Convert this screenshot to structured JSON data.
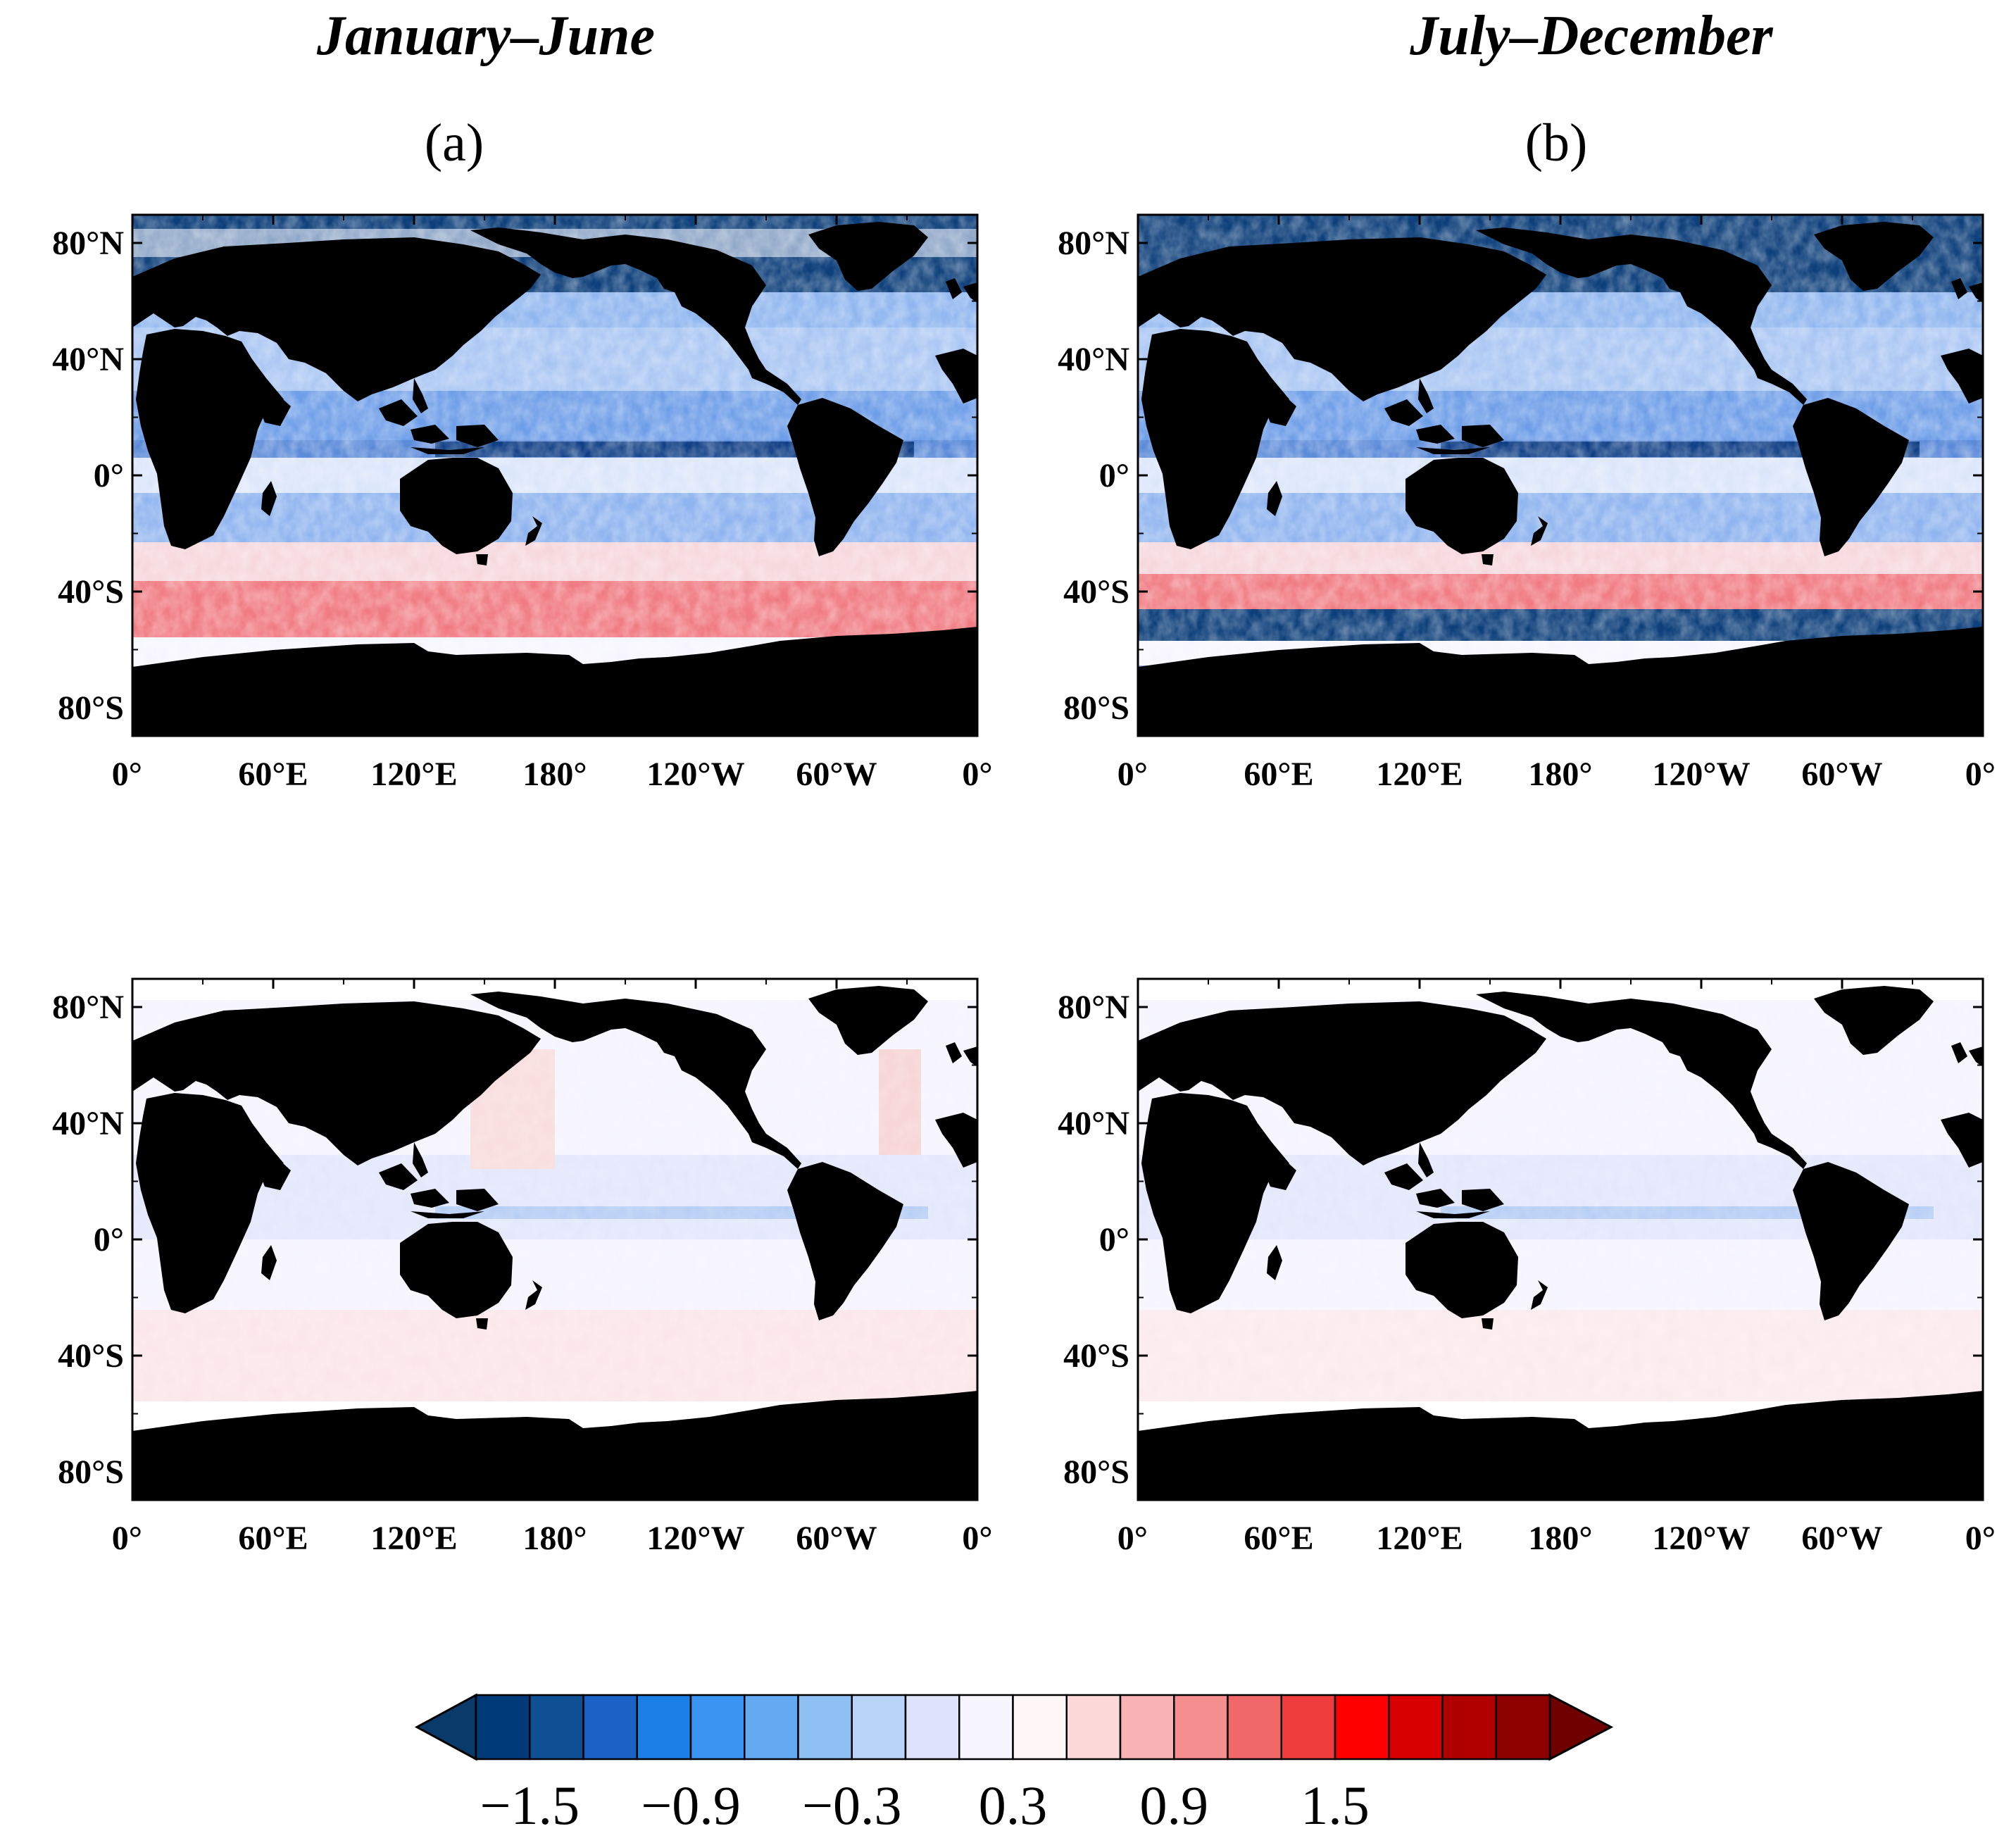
{
  "figure": {
    "columns": [
      {
        "title": "January–June",
        "tag": "(a)"
      },
      {
        "title": "July–December",
        "tag": "(b)"
      }
    ]
  },
  "map": {
    "lat_labels": [
      "80°N",
      "40°N",
      "0°",
      "40°S",
      "80°S"
    ],
    "lon_labels": [
      "0°",
      "60°E",
      "120°E",
      "180°",
      "120°W",
      "60°W",
      "0°"
    ]
  },
  "colorbar": {
    "labels": [
      "−1.5",
      "−0.9",
      "−0.3",
      "0.3",
      "0.9",
      "1.5"
    ],
    "colors": [
      "#003a78",
      "#0f4f94",
      "#1a62c4",
      "#1b7fe8",
      "#3a95f2",
      "#63aaf2",
      "#8ec0f4",
      "#b8d4f8",
      "#dde4fb",
      "#f7f6ff",
      "#fff6f6",
      "#fcd8d8",
      "#f8b4b4",
      "#f58e8e",
      "#f06868",
      "#ef3d3d",
      "#ff0000",
      "#d80000",
      "#b00000",
      "#8c0000"
    ],
    "low_color": "#0a3a6a",
    "high_color": "#6e0000"
  },
  "colors": {
    "land": "#000000",
    "ocean_neutral": "#f4f2fd"
  }
}
